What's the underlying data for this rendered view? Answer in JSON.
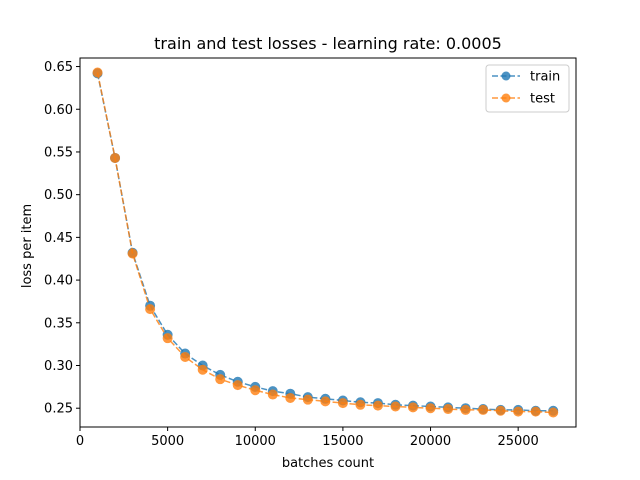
{
  "chart_data": {
    "type": "line",
    "title": "train and test losses - learning rate: 0.0005",
    "xlabel": "batches count",
    "ylabel": "loss per item",
    "xlim": [
      0,
      28300
    ],
    "ylim": [
      0.228,
      0.66
    ],
    "x_ticks": [
      0,
      5000,
      10000,
      15000,
      20000,
      25000
    ],
    "x_tick_labels": [
      "0",
      "5000",
      "10000",
      "15000",
      "20000",
      "25000"
    ],
    "y_ticks": [
      0.25,
      0.3,
      0.35,
      0.4,
      0.45,
      0.5,
      0.55,
      0.6,
      0.65
    ],
    "y_tick_labels": [
      "0.25",
      "0.30",
      "0.35",
      "0.40",
      "0.45",
      "0.50",
      "0.55",
      "0.60",
      "0.65"
    ],
    "grid": false,
    "legend_position": "top-right",
    "x": [
      1000,
      2000,
      3000,
      4000,
      5000,
      6000,
      7000,
      8000,
      9000,
      10000,
      11000,
      12000,
      13000,
      14000,
      15000,
      16000,
      17000,
      18000,
      19000,
      20000,
      21000,
      22000,
      23000,
      24000,
      25000,
      26000,
      27000
    ],
    "series": [
      {
        "name": "train",
        "color": "#1f77b4",
        "values": [
          0.642,
          0.543,
          0.432,
          0.37,
          0.336,
          0.314,
          0.3,
          0.289,
          0.281,
          0.275,
          0.27,
          0.267,
          0.263,
          0.261,
          0.259,
          0.257,
          0.256,
          0.254,
          0.253,
          0.252,
          0.251,
          0.25,
          0.249,
          0.248,
          0.248,
          0.247,
          0.247
        ]
      },
      {
        "name": "test",
        "color": "#ff7f0e",
        "values": [
          0.643,
          0.543,
          0.431,
          0.366,
          0.332,
          0.31,
          0.295,
          0.284,
          0.277,
          0.271,
          0.266,
          0.262,
          0.26,
          0.258,
          0.256,
          0.254,
          0.253,
          0.252,
          0.251,
          0.25,
          0.249,
          0.248,
          0.248,
          0.247,
          0.246,
          0.246,
          0.245
        ]
      }
    ]
  }
}
